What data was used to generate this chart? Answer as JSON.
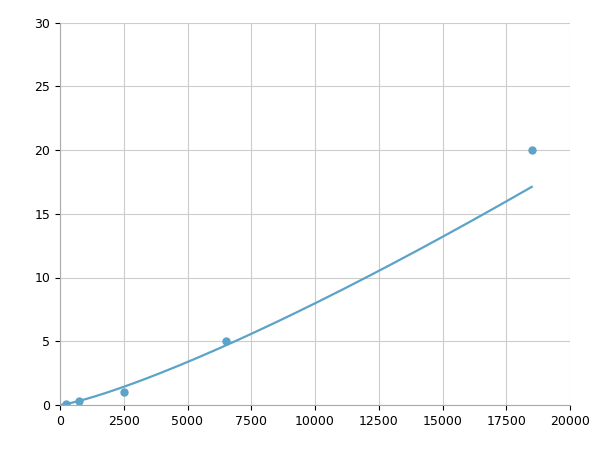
{
  "x_points": [
    250,
    750,
    2500,
    6500,
    18500
  ],
  "y_points": [
    0.1,
    0.3,
    1.0,
    5.0,
    20.0
  ],
  "line_color": "#5ba3c9",
  "marker_color": "#5ba3c9",
  "marker_size": 5,
  "line_width": 1.6,
  "xlim": [
    0,
    20000
  ],
  "ylim": [
    0,
    30
  ],
  "xticks": [
    0,
    2500,
    5000,
    7500,
    10000,
    12500,
    15000,
    17500,
    20000
  ],
  "yticks": [
    0,
    5,
    10,
    15,
    20,
    25,
    30
  ],
  "grid_color": "#cccccc",
  "grid_linewidth": 0.8,
  "background_color": "#ffffff",
  "figsize": [
    6.0,
    4.5
  ],
  "dpi": 100
}
